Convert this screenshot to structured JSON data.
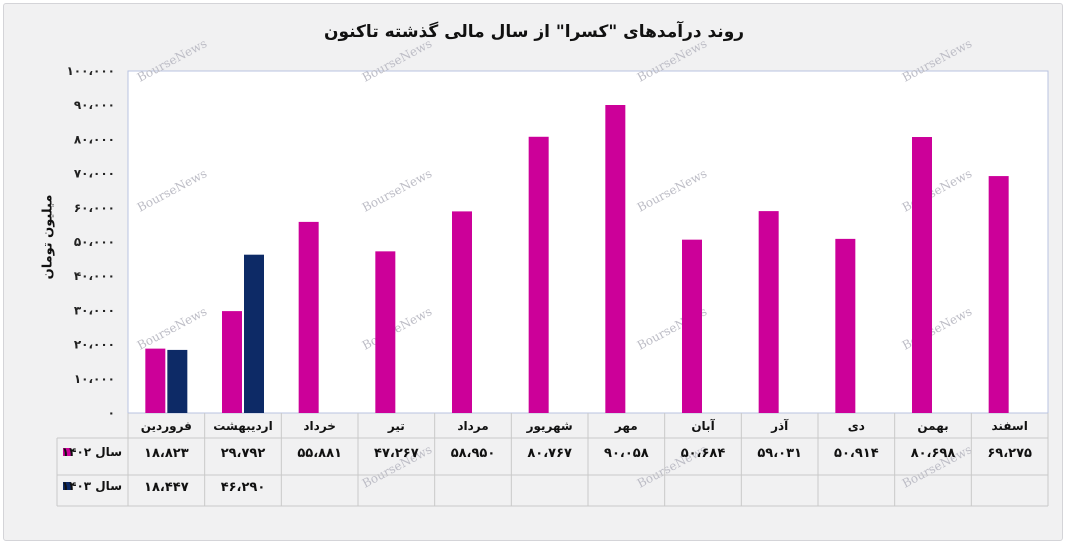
{
  "chart_data": {
    "type": "bar",
    "title": "روند درآمدهای \"کسرا\" از سال مالی گذشته تاکنون",
    "ylabel": "میلیون تومان",
    "ylim": [
      0,
      100000
    ],
    "yticks": [
      0,
      10000,
      20000,
      30000,
      40000,
      50000,
      60000,
      70000,
      80000,
      90000,
      100000
    ],
    "ytick_labels": [
      "۰",
      "۱۰،۰۰۰",
      "۲۰،۰۰۰",
      "۳۰،۰۰۰",
      "۴۰،۰۰۰",
      "۵۰،۰۰۰",
      "۶۰،۰۰۰",
      "۷۰،۰۰۰",
      "۸۰،۰۰۰",
      "۹۰،۰۰۰",
      "۱۰۰،۰۰۰"
    ],
    "categories": [
      "فروردین",
      "اردیبهشت",
      "خرداد",
      "تیر",
      "مرداد",
      "شهریور",
      "مهر",
      "آبان",
      "آذر",
      "دی",
      "بهمن",
      "اسفند"
    ],
    "grid": false,
    "legend": "data-table",
    "series": [
      {
        "name": "سال ۱۴۰۲",
        "color": "#cc0099",
        "values": [
          18823,
          29792,
          55881,
          47267,
          58950,
          80767,
          90058,
          50684,
          59031,
          50914,
          80698,
          69275
        ],
        "labels": [
          "۱۸،۸۲۳",
          "۲۹،۷۹۲",
          "۵۵،۸۸۱",
          "۴۷،۲۶۷",
          "۵۸،۹۵۰",
          "۸۰،۷۶۷",
          "۹۰،۰۵۸",
          "۵۰،۶۸۴",
          "۵۹،۰۳۱",
          "۵۰،۹۱۴",
          "۸۰،۶۹۸",
          "۶۹،۲۷۵"
        ]
      },
      {
        "name": "سال ۱۴۰۳",
        "color": "#0d2a66",
        "values": [
          18447,
          46290,
          null,
          null,
          null,
          null,
          null,
          null,
          null,
          null,
          null,
          null
        ],
        "labels": [
          "۱۸،۴۴۷",
          "۴۶،۲۹۰",
          "",
          "",
          "",
          "",
          "",
          "",
          "",
          "",
          "",
          ""
        ]
      }
    ],
    "watermark": "BourseNews"
  }
}
